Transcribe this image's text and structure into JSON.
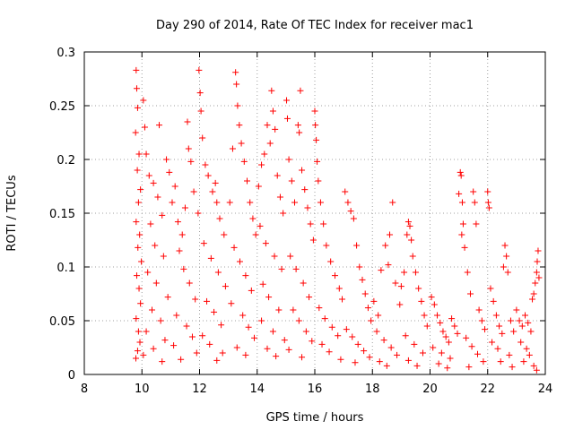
{
  "chart_data": {
    "type": "scatter",
    "title": "Day 290 of 2014, Rate Of TEC Index for receiver mac1",
    "xlabel": "GPS time / hours",
    "ylabel": "ROTI / TECUs",
    "xlim": [
      8,
      24
    ],
    "ylim": [
      0,
      0.3
    ],
    "grid": true,
    "x_ticks": [
      {
        "value": 8,
        "label": "8"
      },
      {
        "value": 10,
        "label": "10"
      },
      {
        "value": 12,
        "label": "12"
      },
      {
        "value": 14,
        "label": "14"
      },
      {
        "value": 16,
        "label": "16"
      },
      {
        "value": 18,
        "label": "18"
      },
      {
        "value": 20,
        "label": "20"
      },
      {
        "value": 22,
        "label": "22"
      },
      {
        "value": 24,
        "label": "24"
      }
    ],
    "y_ticks": [
      {
        "value": 0,
        "label": "0"
      },
      {
        "value": 0.05,
        "label": "0.05"
      },
      {
        "value": 0.1,
        "label": "0.1"
      },
      {
        "value": 0.15,
        "label": "0.15"
      },
      {
        "value": 0.2,
        "label": "0.2"
      },
      {
        "value": 0.25,
        "label": "0.25"
      },
      {
        "value": 0.3,
        "label": "0.3"
      }
    ],
    "marker": "+",
    "series": [
      {
        "name": "ROTI",
        "color": "#ff0000",
        "points": [
          [
            9.8,
            0.283
          ],
          [
            9.82,
            0.266
          ],
          [
            9.85,
            0.248
          ],
          [
            9.78,
            0.225
          ],
          [
            9.9,
            0.205
          ],
          [
            9.84,
            0.19
          ],
          [
            9.95,
            0.172
          ],
          [
            9.88,
            0.16
          ],
          [
            9.8,
            0.142
          ],
          [
            9.92,
            0.13
          ],
          [
            9.86,
            0.118
          ],
          [
            9.98,
            0.105
          ],
          [
            9.82,
            0.092
          ],
          [
            9.9,
            0.08
          ],
          [
            9.95,
            0.066
          ],
          [
            9.8,
            0.052
          ],
          [
            9.88,
            0.04
          ],
          [
            9.93,
            0.03
          ],
          [
            9.85,
            0.022
          ],
          [
            9.79,
            0.015
          ],
          [
            10.05,
            0.255
          ],
          [
            10.1,
            0.23
          ],
          [
            10.15,
            0.205
          ],
          [
            10.25,
            0.185
          ],
          [
            10.4,
            0.178
          ],
          [
            10.55,
            0.165
          ],
          [
            10.7,
            0.148
          ],
          [
            10.85,
            0.2
          ],
          [
            10.95,
            0.188
          ],
          [
            10.6,
            0.232
          ],
          [
            10.3,
            0.14
          ],
          [
            10.45,
            0.12
          ],
          [
            10.75,
            0.11
          ],
          [
            10.2,
            0.095
          ],
          [
            10.5,
            0.085
          ],
          [
            10.9,
            0.072
          ],
          [
            10.35,
            0.06
          ],
          [
            10.65,
            0.05
          ],
          [
            10.15,
            0.04
          ],
          [
            10.8,
            0.032
          ],
          [
            10.4,
            0.024
          ],
          [
            10.05,
            0.018
          ],
          [
            10.7,
            0.012
          ],
          [
            11.05,
            0.16
          ],
          [
            11.15,
            0.175
          ],
          [
            11.25,
            0.142
          ],
          [
            11.4,
            0.13
          ],
          [
            11.5,
            0.155
          ],
          [
            11.58,
            0.235
          ],
          [
            11.62,
            0.21
          ],
          [
            11.7,
            0.198
          ],
          [
            11.8,
            0.17
          ],
          [
            11.95,
            0.15
          ],
          [
            11.3,
            0.115
          ],
          [
            11.45,
            0.098
          ],
          [
            11.65,
            0.085
          ],
          [
            11.85,
            0.07
          ],
          [
            11.2,
            0.055
          ],
          [
            11.55,
            0.045
          ],
          [
            11.75,
            0.035
          ],
          [
            11.1,
            0.027
          ],
          [
            11.9,
            0.02
          ],
          [
            11.35,
            0.014
          ],
          [
            11.98,
            0.283
          ],
          [
            12.02,
            0.262
          ],
          [
            12.05,
            0.245
          ],
          [
            12.1,
            0.22
          ],
          [
            12.2,
            0.195
          ],
          [
            12.3,
            0.185
          ],
          [
            12.45,
            0.17
          ],
          [
            12.55,
            0.178
          ],
          [
            12.6,
            0.16
          ],
          [
            12.7,
            0.145
          ],
          [
            12.85,
            0.13
          ],
          [
            12.15,
            0.122
          ],
          [
            12.4,
            0.108
          ],
          [
            12.65,
            0.095
          ],
          [
            12.9,
            0.082
          ],
          [
            12.25,
            0.068
          ],
          [
            12.5,
            0.058
          ],
          [
            12.75,
            0.046
          ],
          [
            12.1,
            0.036
          ],
          [
            12.35,
            0.028
          ],
          [
            12.8,
            0.02
          ],
          [
            12.6,
            0.013
          ],
          [
            13.05,
            0.16
          ],
          [
            13.15,
            0.21
          ],
          [
            13.25,
            0.281
          ],
          [
            13.28,
            0.27
          ],
          [
            13.32,
            0.25
          ],
          [
            13.38,
            0.232
          ],
          [
            13.45,
            0.215
          ],
          [
            13.55,
            0.198
          ],
          [
            13.65,
            0.18
          ],
          [
            13.75,
            0.16
          ],
          [
            13.85,
            0.145
          ],
          [
            13.95,
            0.13
          ],
          [
            13.2,
            0.118
          ],
          [
            13.4,
            0.105
          ],
          [
            13.6,
            0.092
          ],
          [
            13.8,
            0.078
          ],
          [
            13.1,
            0.066
          ],
          [
            13.5,
            0.055
          ],
          [
            13.7,
            0.044
          ],
          [
            13.9,
            0.034
          ],
          [
            13.3,
            0.025
          ],
          [
            13.6,
            0.018
          ],
          [
            14.05,
            0.175
          ],
          [
            14.15,
            0.195
          ],
          [
            14.25,
            0.205
          ],
          [
            14.35,
            0.232
          ],
          [
            14.45,
            0.215
          ],
          [
            14.5,
            0.264
          ],
          [
            14.55,
            0.245
          ],
          [
            14.62,
            0.228
          ],
          [
            14.7,
            0.185
          ],
          [
            14.8,
            0.165
          ],
          [
            14.9,
            0.15
          ],
          [
            14.1,
            0.138
          ],
          [
            14.3,
            0.122
          ],
          [
            14.6,
            0.11
          ],
          [
            14.85,
            0.098
          ],
          [
            14.2,
            0.084
          ],
          [
            14.4,
            0.072
          ],
          [
            14.75,
            0.06
          ],
          [
            14.15,
            0.05
          ],
          [
            14.55,
            0.04
          ],
          [
            14.95,
            0.032
          ],
          [
            14.35,
            0.024
          ],
          [
            14.65,
            0.017
          ],
          [
            15.02,
            0.255
          ],
          [
            15.05,
            0.238
          ],
          [
            15.1,
            0.2
          ],
          [
            15.2,
            0.18
          ],
          [
            15.3,
            0.16
          ],
          [
            15.42,
            0.232
          ],
          [
            15.46,
            0.225
          ],
          [
            15.5,
            0.264
          ],
          [
            15.55,
            0.19
          ],
          [
            15.65,
            0.172
          ],
          [
            15.75,
            0.155
          ],
          [
            15.85,
            0.14
          ],
          [
            15.95,
            0.125
          ],
          [
            15.15,
            0.11
          ],
          [
            15.35,
            0.098
          ],
          [
            15.6,
            0.085
          ],
          [
            15.8,
            0.072
          ],
          [
            15.25,
            0.06
          ],
          [
            15.45,
            0.05
          ],
          [
            15.7,
            0.04
          ],
          [
            15.9,
            0.031
          ],
          [
            15.1,
            0.023
          ],
          [
            15.55,
            0.016
          ],
          [
            16.0,
            0.245
          ],
          [
            16.02,
            0.232
          ],
          [
            16.05,
            0.218
          ],
          [
            16.08,
            0.198
          ],
          [
            16.12,
            0.18
          ],
          [
            16.2,
            0.16
          ],
          [
            16.3,
            0.14
          ],
          [
            16.4,
            0.12
          ],
          [
            16.55,
            0.105
          ],
          [
            16.7,
            0.092
          ],
          [
            16.85,
            0.08
          ],
          [
            16.95,
            0.07
          ],
          [
            16.15,
            0.062
          ],
          [
            16.35,
            0.052
          ],
          [
            16.6,
            0.044
          ],
          [
            16.8,
            0.036
          ],
          [
            16.25,
            0.028
          ],
          [
            16.5,
            0.021
          ],
          [
            16.9,
            0.014
          ],
          [
            17.05,
            0.17
          ],
          [
            17.15,
            0.16
          ],
          [
            17.25,
            0.152
          ],
          [
            17.35,
            0.145
          ],
          [
            17.45,
            0.12
          ],
          [
            17.55,
            0.1
          ],
          [
            17.65,
            0.088
          ],
          [
            17.75,
            0.075
          ],
          [
            17.85,
            0.062
          ],
          [
            17.95,
            0.05
          ],
          [
            17.1,
            0.042
          ],
          [
            17.3,
            0.035
          ],
          [
            17.5,
            0.028
          ],
          [
            17.7,
            0.022
          ],
          [
            17.9,
            0.016
          ],
          [
            17.4,
            0.011
          ],
          [
            18.05,
            0.068
          ],
          [
            18.2,
            0.055
          ],
          [
            18.3,
            0.097
          ],
          [
            18.45,
            0.12
          ],
          [
            18.55,
            0.102
          ],
          [
            18.6,
            0.13
          ],
          [
            18.7,
            0.16
          ],
          [
            18.8,
            0.085
          ],
          [
            18.95,
            0.065
          ],
          [
            18.15,
            0.04
          ],
          [
            18.4,
            0.032
          ],
          [
            18.65,
            0.025
          ],
          [
            18.85,
            0.018
          ],
          [
            18.25,
            0.012
          ],
          [
            18.5,
            0.008
          ],
          [
            19.0,
            0.082
          ],
          [
            19.1,
            0.095
          ],
          [
            19.2,
            0.13
          ],
          [
            19.25,
            0.142
          ],
          [
            19.3,
            0.138
          ],
          [
            19.35,
            0.125
          ],
          [
            19.4,
            0.11
          ],
          [
            19.5,
            0.095
          ],
          [
            19.6,
            0.08
          ],
          [
            19.7,
            0.068
          ],
          [
            19.8,
            0.055
          ],
          [
            19.9,
            0.045
          ],
          [
            19.15,
            0.036
          ],
          [
            19.45,
            0.028
          ],
          [
            19.75,
            0.02
          ],
          [
            19.25,
            0.013
          ],
          [
            19.55,
            0.008
          ],
          [
            20.05,
            0.072
          ],
          [
            20.15,
            0.065
          ],
          [
            20.25,
            0.055
          ],
          [
            20.35,
            0.048
          ],
          [
            20.45,
            0.04
          ],
          [
            20.55,
            0.035
          ],
          [
            20.65,
            0.03
          ],
          [
            20.75,
            0.052
          ],
          [
            20.85,
            0.045
          ],
          [
            20.95,
            0.038
          ],
          [
            20.1,
            0.025
          ],
          [
            20.4,
            0.02
          ],
          [
            20.7,
            0.015
          ],
          [
            20.3,
            0.01
          ],
          [
            20.6,
            0.006
          ],
          [
            21.0,
            0.168
          ],
          [
            21.05,
            0.188
          ],
          [
            21.08,
            0.185
          ],
          [
            21.12,
            0.16
          ],
          [
            21.15,
            0.14
          ],
          [
            21.1,
            0.13
          ],
          [
            21.2,
            0.118
          ],
          [
            21.3,
            0.095
          ],
          [
            21.4,
            0.075
          ],
          [
            21.5,
            0.17
          ],
          [
            21.55,
            0.16
          ],
          [
            21.6,
            0.14
          ],
          [
            21.7,
            0.06
          ],
          [
            21.8,
            0.05
          ],
          [
            21.9,
            0.042
          ],
          [
            21.25,
            0.034
          ],
          [
            21.45,
            0.026
          ],
          [
            21.65,
            0.019
          ],
          [
            21.85,
            0.012
          ],
          [
            21.35,
            0.007
          ],
          [
            22.0,
            0.17
          ],
          [
            22.02,
            0.16
          ],
          [
            22.05,
            0.155
          ],
          [
            22.1,
            0.08
          ],
          [
            22.2,
            0.068
          ],
          [
            22.3,
            0.055
          ],
          [
            22.4,
            0.045
          ],
          [
            22.5,
            0.038
          ],
          [
            22.55,
            0.1
          ],
          [
            22.6,
            0.12
          ],
          [
            22.65,
            0.11
          ],
          [
            22.7,
            0.095
          ],
          [
            22.8,
            0.05
          ],
          [
            22.9,
            0.04
          ],
          [
            22.15,
            0.03
          ],
          [
            22.35,
            0.024
          ],
          [
            22.75,
            0.018
          ],
          [
            22.45,
            0.012
          ],
          [
            22.85,
            0.007
          ],
          [
            23.0,
            0.06
          ],
          [
            23.1,
            0.05
          ],
          [
            23.2,
            0.045
          ],
          [
            23.3,
            0.055
          ],
          [
            23.4,
            0.048
          ],
          [
            23.5,
            0.04
          ],
          [
            23.55,
            0.07
          ],
          [
            23.6,
            0.075
          ],
          [
            23.65,
            0.085
          ],
          [
            23.7,
            0.095
          ],
          [
            23.72,
            0.105
          ],
          [
            23.75,
            0.115
          ],
          [
            23.78,
            0.09
          ],
          [
            23.15,
            0.03
          ],
          [
            23.35,
            0.024
          ],
          [
            23.45,
            0.018
          ],
          [
            23.25,
            0.012
          ],
          [
            23.6,
            0.008
          ],
          [
            23.7,
            0.004
          ]
        ]
      }
    ]
  }
}
